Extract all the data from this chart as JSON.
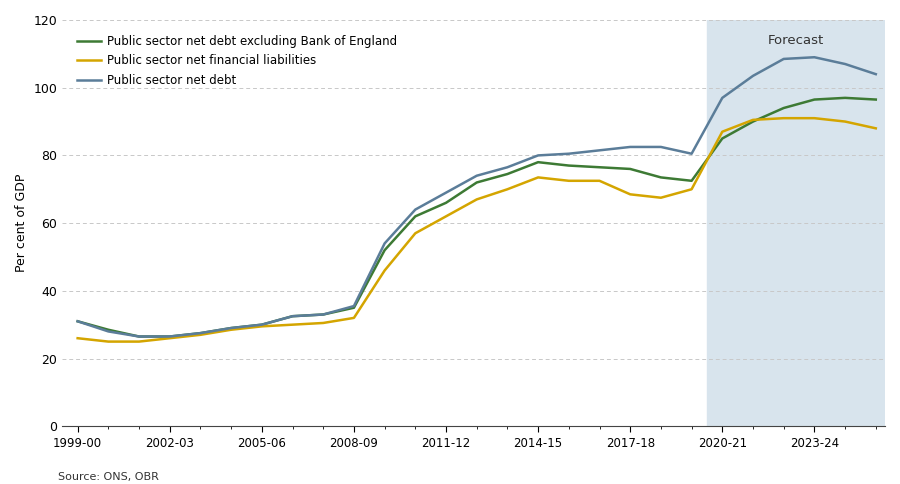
{
  "ylabel": "Per cent of GDP",
  "source": "Source: ONS, OBR",
  "forecast_label": "Forecast",
  "forecast_start_idx": 21,
  "ylim": [
    0,
    120
  ],
  "yticks": [
    0,
    20,
    40,
    60,
    80,
    100,
    120
  ],
  "xtick_labels": [
    "1999-00",
    "2002-03",
    "2005-06",
    "2008-09",
    "2011-12",
    "2014-15",
    "2017-18",
    "2020-21",
    "2023-24"
  ],
  "xtick_positions": [
    0,
    3,
    6,
    9,
    12,
    15,
    18,
    21,
    24
  ],
  "forecast_bg_color": "#d8e4ed",
  "grid_color": "#c8c8c8",
  "background_color": "#ffffff",
  "n_points": 27,
  "net_debt_ex_boe": [
    31.0,
    28.5,
    26.5,
    26.5,
    27.5,
    29.0,
    30.0,
    32.5,
    33.0,
    35.0,
    52.0,
    62.0,
    66.0,
    72.0,
    74.5,
    78.0,
    77.0,
    76.5,
    76.0,
    73.5,
    72.5,
    85.0,
    90.0,
    94.0,
    96.5,
    97.0,
    96.5
  ],
  "net_fin_liab": [
    26.0,
    25.0,
    25.0,
    26.0,
    27.0,
    28.5,
    29.5,
    30.0,
    30.5,
    32.0,
    46.0,
    57.0,
    62.0,
    67.0,
    70.0,
    73.5,
    72.5,
    72.5,
    68.5,
    67.5,
    70.0,
    87.0,
    90.5,
    91.0,
    91.0,
    90.0,
    88.0
  ],
  "net_debt": [
    31.0,
    28.0,
    26.5,
    26.5,
    27.5,
    29.0,
    30.0,
    32.5,
    33.0,
    35.5,
    54.0,
    64.0,
    69.0,
    74.0,
    76.5,
    80.0,
    80.5,
    81.5,
    82.5,
    82.5,
    80.5,
    97.0,
    103.5,
    108.5,
    109.0,
    107.0,
    104.0
  ],
  "color_net_debt_ex_boe": "#3d7a34",
  "color_net_fin_liab": "#d4a500",
  "color_net_debt": "#5b7d99",
  "linewidth": 1.8
}
